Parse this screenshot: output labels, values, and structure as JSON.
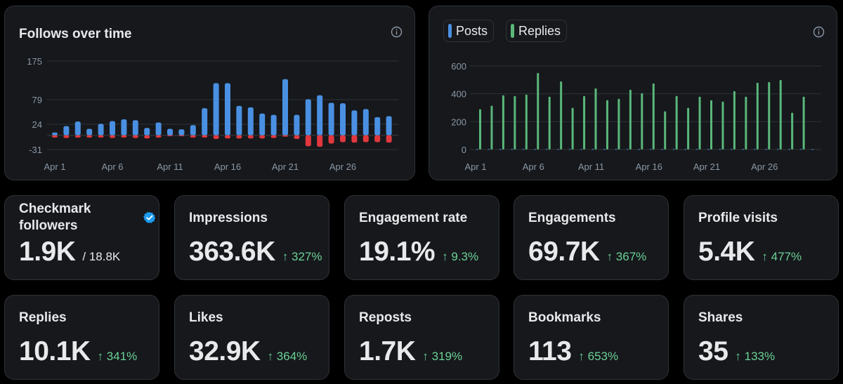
{
  "follows_chart": {
    "title": "Follows over time",
    "icon": "info-icon"
  },
  "posts_chart": {
    "legend": [
      {
        "label": "Posts",
        "color": "#4a90e2"
      },
      {
        "label": "Replies",
        "color": "#5ab77a"
      }
    ],
    "icon": "info-icon"
  },
  "stats_row1": [
    {
      "label": "Checkmark followers",
      "value": "1.9K",
      "sub": "/ 18.8K",
      "change": "",
      "badge": "verified-badge-icon"
    },
    {
      "label": "Impressions",
      "value": "363.6K",
      "sub": "",
      "change": "↑ 327%"
    },
    {
      "label": "Engagement rate",
      "value": "19.1%",
      "sub": "",
      "change": "↑ 9.3%"
    },
    {
      "label": "Engagements",
      "value": "69.7K",
      "sub": "",
      "change": "↑ 367%"
    },
    {
      "label": "Profile visits",
      "value": "5.4K",
      "sub": "",
      "change": "↑ 477%"
    }
  ],
  "stats_row2": [
    {
      "label": "Replies",
      "value": "10.1K",
      "change": "↑ 341%"
    },
    {
      "label": "Likes",
      "value": "32.9K",
      "change": "↑ 364%"
    },
    {
      "label": "Reposts",
      "value": "1.7K",
      "change": "↑ 319%"
    },
    {
      "label": "Bookmarks",
      "value": "113",
      "change": "↑ 653%"
    },
    {
      "label": "Shares",
      "value": "35",
      "change": "↑ 133%"
    }
  ],
  "colors": {
    "follows": "#4a90e2",
    "unfollows": "#e0383e",
    "replies": "#5ab77a",
    "posts": "#4a90e2",
    "change_positive": "#6cd196"
  },
  "chart_data": [
    {
      "type": "bar",
      "title": "Follows over time",
      "x_tick_labels": [
        "Apr 1",
        "Apr 6",
        "Apr 11",
        "Apr 16",
        "Apr 21",
        "Apr 26"
      ],
      "y_tick_labels": [
        "175",
        "79",
        "24",
        "-31"
      ],
      "ylim": [
        -31,
        175
      ],
      "categories": [
        "Apr 1",
        "Apr 2",
        "Apr 3",
        "Apr 4",
        "Apr 5",
        "Apr 6",
        "Apr 7",
        "Apr 8",
        "Apr 9",
        "Apr 10",
        "Apr 11",
        "Apr 12",
        "Apr 13",
        "Apr 14",
        "Apr 15",
        "Apr 16",
        "Apr 17",
        "Apr 18",
        "Apr 19",
        "Apr 20",
        "Apr 21",
        "Apr 22",
        "Apr 23",
        "Apr 24",
        "Apr 25",
        "Apr 26",
        "Apr 27",
        "Apr 28",
        "Apr 29",
        "Apr 30"
      ],
      "series": [
        {
          "name": "Follows",
          "values": [
            6,
            20,
            30,
            14,
            25,
            31,
            35,
            33,
            16,
            28,
            14,
            13,
            22,
            60,
            120,
            120,
            65,
            62,
            48,
            45,
            130,
            45,
            80,
            90,
            72,
            71,
            55,
            58,
            40,
            42
          ]
        },
        {
          "name": "Unfollows",
          "values": [
            -5,
            -6,
            -5,
            -5,
            -5,
            -6,
            -5,
            -6,
            -7,
            -5,
            -2,
            -2,
            -5,
            -5,
            -8,
            -7,
            -7,
            -7,
            -7,
            -6,
            -3,
            -8,
            -24,
            -25,
            -18,
            -15,
            -16,
            -15,
            -15,
            -16
          ]
        }
      ]
    },
    {
      "type": "bar",
      "x_tick_labels": [
        "Apr 1",
        "Apr 6",
        "Apr 11",
        "Apr 16",
        "Apr 21",
        "Apr 26"
      ],
      "y_tick_labels": [
        "600",
        "400",
        "200",
        "0"
      ],
      "ylim": [
        0,
        600
      ],
      "categories": [
        "Apr 1",
        "Apr 2",
        "Apr 3",
        "Apr 4",
        "Apr 5",
        "Apr 6",
        "Apr 7",
        "Apr 8",
        "Apr 9",
        "Apr 10",
        "Apr 11",
        "Apr 12",
        "Apr 13",
        "Apr 14",
        "Apr 15",
        "Apr 16",
        "Apr 17",
        "Apr 18",
        "Apr 19",
        "Apr 20",
        "Apr 21",
        "Apr 22",
        "Apr 23",
        "Apr 24",
        "Apr 25",
        "Apr 26",
        "Apr 27",
        "Apr 28",
        "Apr 29",
        "Apr 30"
      ],
      "series": [
        {
          "name": "Posts",
          "values": [
            4,
            4,
            4,
            4,
            4,
            4,
            4,
            4,
            4,
            4,
            4,
            4,
            4,
            4,
            4,
            4,
            4,
            4,
            4,
            4,
            4,
            4,
            4,
            4,
            4,
            4,
            4,
            4,
            4,
            4
          ]
        },
        {
          "name": "Replies",
          "values": [
            290,
            315,
            390,
            385,
            395,
            550,
            380,
            490,
            300,
            385,
            440,
            355,
            365,
            430,
            405,
            475,
            275,
            385,
            300,
            380,
            355,
            345,
            420,
            380,
            480,
            485,
            500,
            265,
            380,
            0
          ]
        }
      ]
    }
  ]
}
